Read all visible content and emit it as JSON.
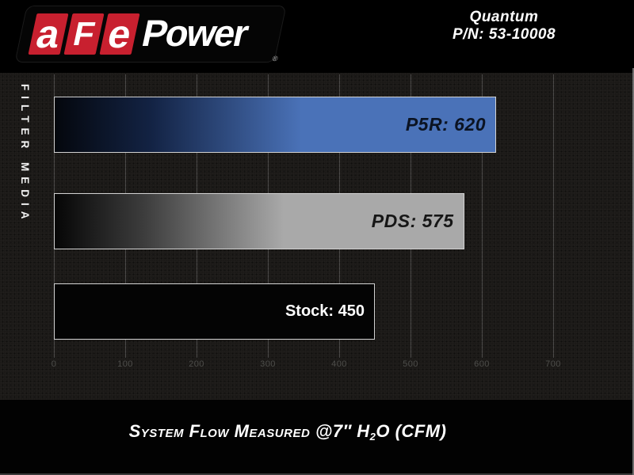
{
  "brand": {
    "letter_a": "a",
    "letter_f": "F",
    "letter_e": "e",
    "power": "Power",
    "registered": "®",
    "red": "#c8202f"
  },
  "header": {
    "product_name": "Quantum",
    "part_number": "P/N: 53-10008"
  },
  "chart_data": {
    "type": "bar",
    "orientation": "horizontal",
    "xlabel": "System Flow Measured @7″ H2O (CFM)",
    "ylabel": "FILTER MEDIA",
    "xlim": [
      0,
      700
    ],
    "xticks": [
      0,
      100,
      200,
      300,
      400,
      500,
      600,
      700
    ],
    "grid": true,
    "categories": [
      "P5R",
      "PDS",
      "Stock"
    ],
    "values": [
      620,
      575,
      450
    ],
    "series": [
      {
        "name": "P5R",
        "value": 620,
        "label": "P5R: 620",
        "gradient": true,
        "bar_start_color": "#04070d",
        "bar_mid_color": "#132344",
        "bar_end_color": "#4a72b8",
        "label_color": "#0b1322",
        "label_style": "techno"
      },
      {
        "name": "PDS",
        "value": 575,
        "label": "PDS: 575",
        "gradient": true,
        "bar_start_color": "#060606",
        "bar_mid_color": "#3d3d3d",
        "bar_end_color": "#a9a9a9",
        "label_color": "#161616",
        "label_style": "techno"
      },
      {
        "name": "Stock",
        "value": 450,
        "label": "Stock: 450",
        "gradient": false,
        "bar_start_color": "#040404",
        "bar_mid_color": "",
        "bar_end_color": "#070707",
        "label_color": "#ffffff",
        "label_style": "plain"
      }
    ]
  },
  "footer": {
    "caption_prefix": "System Flow Measured @7″ H",
    "caption_sub": "2",
    "caption_suffix": "O (CFM)"
  }
}
